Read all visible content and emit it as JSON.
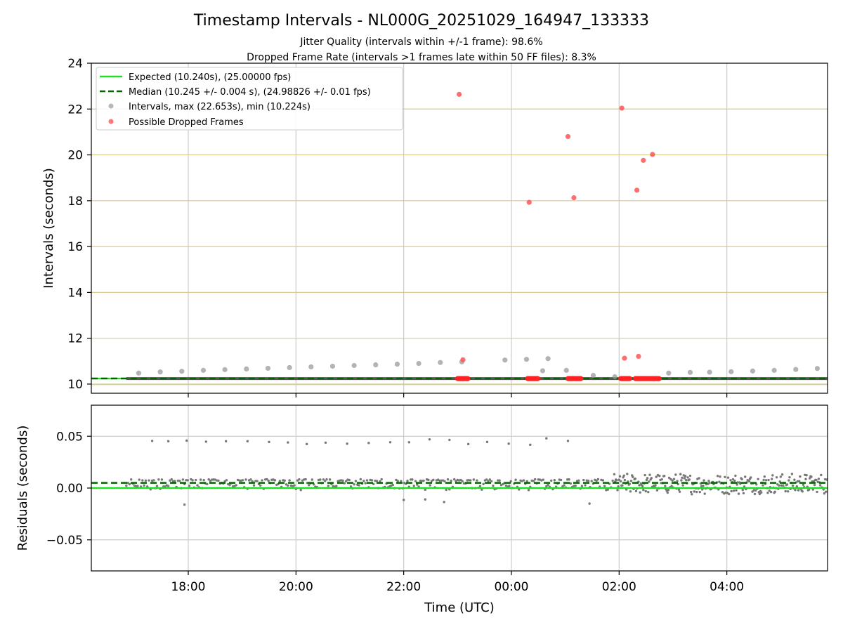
{
  "chart_data": {
    "type": "scatter",
    "title": "Timestamp Intervals - NL000G_20251029_164947_133333",
    "subtitle_lines": [
      "Jitter Quality (intervals within +/-1 frame): 98.6%",
      "Dropped Frame Rate (intervals >1 frames late within 50 FF files): 8.3%"
    ],
    "xlabel": "Time (UTC)",
    "xlim_hours": [
      16.2,
      29.87
    ],
    "x_ticks": [
      {
        "value": 18,
        "label": "18:00"
      },
      {
        "value": 20,
        "label": "20:00"
      },
      {
        "value": 22,
        "label": "22:00"
      },
      {
        "value": 24,
        "label": "00:00"
      },
      {
        "value": 26,
        "label": "02:00"
      },
      {
        "value": 28,
        "label": "04:00"
      }
    ],
    "top_panel": {
      "ylabel": "Intervals (seconds)",
      "ylim": [
        9.6,
        24
      ],
      "y_ticks": [
        10,
        12,
        14,
        16,
        18,
        20,
        22,
        24
      ],
      "hgrid_color": "#d8c98e",
      "legend": {
        "placement": "top-left",
        "entries": [
          {
            "label": "Expected (10.240s), (25.00000 fps)",
            "kind": "solid-line",
            "color": "#22dd22"
          },
          {
            "label": "Median (10.245 +/- 0.004 s), (24.98826 +/- 0.01 fps)",
            "kind": "dashed-line",
            "color": "#006400"
          },
          {
            "label": "Intervals, max (22.653s), min (10.224s)",
            "kind": "marker",
            "color": "#999999"
          },
          {
            "label": "Possible Dropped Frames",
            "kind": "marker",
            "color": "#ff5555"
          }
        ]
      },
      "expected_line": {
        "value": 10.24,
        "color": "#22dd22"
      },
      "median_line": {
        "value": 10.245,
        "color": "#006400"
      },
      "baseline_segment": {
        "x_start": 16.85,
        "x_end": 29.87,
        "value": 10.24,
        "color": "#555555"
      },
      "interval_points": [
        [
          17.08,
          10.48
        ],
        [
          17.48,
          10.53
        ],
        [
          17.88,
          10.56
        ],
        [
          18.28,
          10.6
        ],
        [
          18.68,
          10.63
        ],
        [
          19.08,
          10.66
        ],
        [
          19.48,
          10.69
        ],
        [
          19.88,
          10.72
        ],
        [
          20.28,
          10.75
        ],
        [
          20.68,
          10.78
        ],
        [
          21.08,
          10.81
        ],
        [
          21.48,
          10.84
        ],
        [
          21.88,
          10.87
        ],
        [
          22.28,
          10.9
        ],
        [
          22.68,
          10.94
        ],
        [
          23.08,
          10.97
        ],
        [
          23.88,
          11.05
        ],
        [
          24.28,
          11.08
        ],
        [
          24.68,
          11.11
        ],
        [
          24.58,
          10.58
        ],
        [
          25.02,
          10.6
        ],
        [
          25.52,
          10.38
        ],
        [
          25.92,
          10.32
        ],
        [
          26.92,
          10.48
        ],
        [
          27.32,
          10.51
        ],
        [
          27.68,
          10.52
        ],
        [
          28.08,
          10.54
        ],
        [
          28.48,
          10.57
        ],
        [
          28.88,
          10.6
        ],
        [
          29.28,
          10.64
        ],
        [
          29.68,
          10.68
        ]
      ],
      "dropped_points": [
        [
          23.03,
          22.64
        ],
        [
          25.05,
          20.8
        ],
        [
          25.16,
          18.13
        ],
        [
          24.33,
          17.93
        ],
        [
          26.05,
          22.04
        ],
        [
          26.62,
          20.02
        ],
        [
          26.45,
          19.76
        ],
        [
          26.33,
          18.46
        ],
        [
          26.1,
          11.13
        ],
        [
          26.36,
          11.21
        ],
        [
          23.1,
          11.06
        ]
      ],
      "dropped_clusters": [
        [
          23.0,
          23.2
        ],
        [
          24.3,
          24.5
        ],
        [
          25.05,
          25.3
        ],
        [
          26.03,
          26.2
        ],
        [
          26.3,
          26.75
        ]
      ]
    },
    "bottom_panel": {
      "ylabel": "Residuals (seconds)",
      "ylim": [
        -0.08,
        0.08
      ],
      "y_ticks": [
        {
          "value": 0.05,
          "label": "0.05"
        },
        {
          "value": 0.0,
          "label": "0.00"
        },
        {
          "value": -0.05,
          "label": "−0.05"
        }
      ],
      "expected_line": {
        "value": 0.0,
        "color": "#22dd22"
      },
      "median_line": {
        "value": 0.005,
        "color": "#006400"
      },
      "outlier_points": [
        [
          17.33,
          0.0455
        ],
        [
          17.63,
          0.0452
        ],
        [
          17.97,
          0.0458
        ],
        [
          18.33,
          0.0448
        ],
        [
          18.7,
          0.0452
        ],
        [
          19.1,
          0.0452
        ],
        [
          19.5,
          0.0445
        ],
        [
          19.85,
          0.044
        ],
        [
          20.2,
          0.0425
        ],
        [
          20.55,
          0.0438
        ],
        [
          20.95,
          0.0428
        ],
        [
          21.35,
          0.0435
        ],
        [
          21.75,
          0.0442
        ],
        [
          22.1,
          0.0442
        ],
        [
          22.48,
          0.047
        ],
        [
          22.85,
          0.0465
        ],
        [
          23.2,
          0.0425
        ],
        [
          23.55,
          0.0445
        ],
        [
          23.95,
          0.0428
        ],
        [
          24.35,
          0.0418
        ],
        [
          24.65,
          0.048
        ],
        [
          25.05,
          0.0455
        ],
        [
          17.93,
          -0.016
        ],
        [
          22.0,
          -0.0115
        ],
        [
          22.4,
          -0.011
        ],
        [
          22.75,
          -0.0135
        ],
        [
          25.45,
          -0.015
        ]
      ],
      "dense_band": {
        "x_start": 16.85,
        "x_end": 29.87,
        "value": 0.007,
        "color": "#777777"
      }
    }
  }
}
